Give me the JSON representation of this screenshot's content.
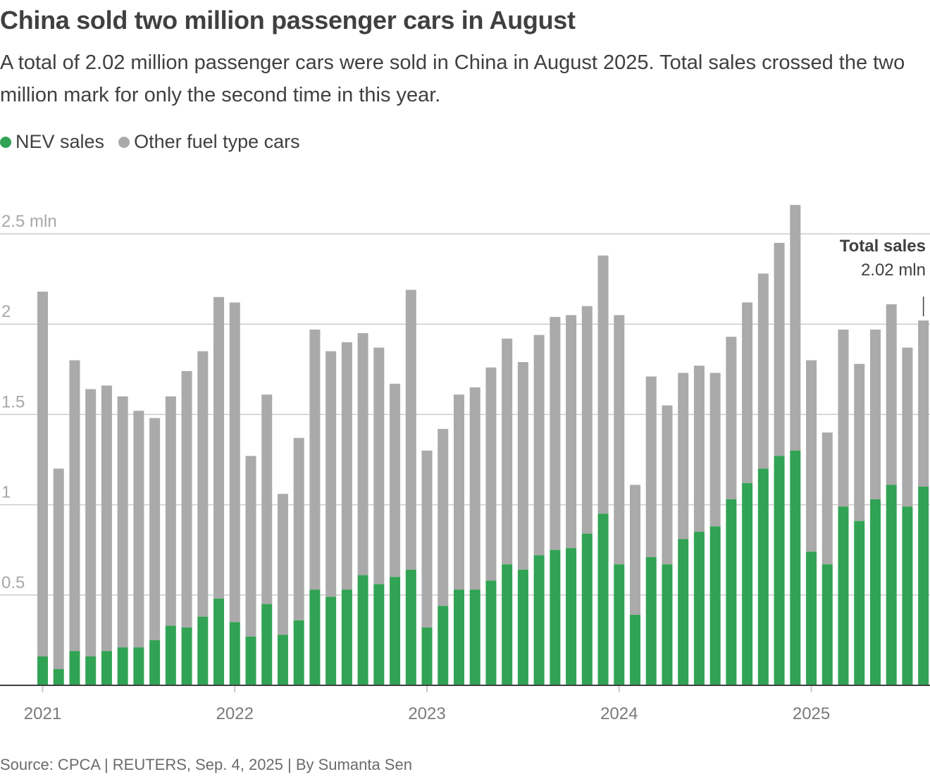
{
  "header": {
    "title": "China sold two million passenger cars in August",
    "subtitle": "A total of 2.02 million passenger cars were sold in China in August 2025. Total sales crossed the two million mark for only the second time in this year."
  },
  "legend": [
    {
      "label": "NEV sales",
      "color": "#31a354"
    },
    {
      "label": "Other fuel type cars",
      "color": "#aaaaaa"
    }
  ],
  "footer": {
    "source": "Source: CPCA | REUTERS, Sep. 4, 2025 | By Sumanta Sen"
  },
  "chart_data": {
    "type": "bar",
    "stacked": true,
    "title": "China sold two million passenger cars in August",
    "xlabel": "",
    "ylabel": "",
    "unit": "mln",
    "ylim": [
      0,
      2.7
    ],
    "yticks": [
      {
        "value": 0.5,
        "label": "0.5"
      },
      {
        "value": 1,
        "label": "1"
      },
      {
        "value": 1.5,
        "label": "1.5"
      },
      {
        "value": 2,
        "label": "2"
      },
      {
        "value": 2.5,
        "label": "2.5 mln"
      }
    ],
    "xticks": [
      {
        "index": 0,
        "label": "2021"
      },
      {
        "index": 12,
        "label": "2022"
      },
      {
        "index": 24,
        "label": "2023"
      },
      {
        "index": 36,
        "label": "2024"
      },
      {
        "index": 48,
        "label": "2025"
      }
    ],
    "grid": true,
    "legend_position": "top-left",
    "categories": [
      "2021-01",
      "2021-02",
      "2021-03",
      "2021-04",
      "2021-05",
      "2021-06",
      "2021-07",
      "2021-08",
      "2021-09",
      "2021-10",
      "2021-11",
      "2021-12",
      "2022-01",
      "2022-02",
      "2022-03",
      "2022-04",
      "2022-05",
      "2022-06",
      "2022-07",
      "2022-08",
      "2022-09",
      "2022-10",
      "2022-11",
      "2022-12",
      "2023-01",
      "2023-02",
      "2023-03",
      "2023-04",
      "2023-05",
      "2023-06",
      "2023-07",
      "2023-08",
      "2023-09",
      "2023-10",
      "2023-11",
      "2023-12",
      "2024-01",
      "2024-02",
      "2024-03",
      "2024-04",
      "2024-05",
      "2024-06",
      "2024-07",
      "2024-08",
      "2024-09",
      "2024-10",
      "2024-11",
      "2024-12",
      "2025-01",
      "2025-02",
      "2025-03",
      "2025-04",
      "2025-05",
      "2025-06",
      "2025-07",
      "2025-08"
    ],
    "series": [
      {
        "name": "NEV sales",
        "color": "#31a354",
        "values": [
          0.16,
          0.09,
          0.19,
          0.16,
          0.19,
          0.21,
          0.21,
          0.25,
          0.33,
          0.32,
          0.38,
          0.48,
          0.35,
          0.27,
          0.45,
          0.28,
          0.36,
          0.53,
          0.49,
          0.53,
          0.61,
          0.56,
          0.6,
          0.64,
          0.32,
          0.44,
          0.53,
          0.53,
          0.58,
          0.67,
          0.64,
          0.72,
          0.75,
          0.76,
          0.84,
          0.95,
          0.67,
          0.39,
          0.71,
          0.67,
          0.81,
          0.85,
          0.88,
          1.03,
          1.12,
          1.2,
          1.27,
          1.3,
          0.74,
          0.67,
          0.99,
          0.91,
          1.03,
          1.11,
          0.99,
          1.1
        ]
      },
      {
        "name": "Other fuel type cars",
        "color": "#aaaaaa",
        "values": [
          2.02,
          1.11,
          1.61,
          1.48,
          1.47,
          1.39,
          1.31,
          1.23,
          1.27,
          1.42,
          1.47,
          1.67,
          1.77,
          1.0,
          1.16,
          0.78,
          1.01,
          1.44,
          1.36,
          1.37,
          1.34,
          1.31,
          1.07,
          1.55,
          0.98,
          0.98,
          1.08,
          1.12,
          1.18,
          1.25,
          1.15,
          1.22,
          1.29,
          1.29,
          1.26,
          1.43,
          1.38,
          0.72,
          1.0,
          0.88,
          0.92,
          0.92,
          0.85,
          0.9,
          1.0,
          1.08,
          1.18,
          1.36,
          1.06,
          0.73,
          0.98,
          0.87,
          0.94,
          1.0,
          0.88,
          0.92
        ]
      }
    ],
    "annotation": {
      "target_index": 55,
      "title": "Total sales",
      "value_label": "2.02 mln"
    }
  }
}
